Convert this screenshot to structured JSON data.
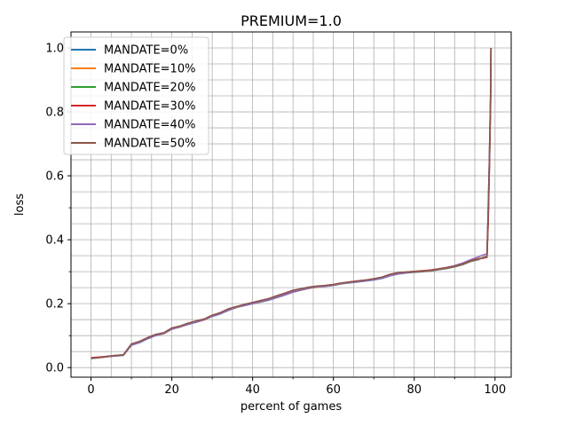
{
  "chart_data": {
    "type": "line",
    "title": "PREMIUM=1.0",
    "xlabel": "percent of games",
    "ylabel": "loss",
    "xlim": [
      -4.95,
      104
    ],
    "ylim": [
      -0.03,
      1.05
    ],
    "xticks": [
      0,
      20,
      40,
      60,
      80,
      100
    ],
    "xtick_labels": [
      "0",
      "20",
      "40",
      "60",
      "80",
      "100"
    ],
    "yticks": [
      0.0,
      0.2,
      0.4,
      0.6,
      0.8,
      1.0
    ],
    "ytick_labels": [
      "0.0",
      "0.2",
      "0.4",
      "0.6",
      "0.8",
      "1.0"
    ],
    "grid": true,
    "minor_grid": true,
    "legend_position": "top-left",
    "series": [
      {
        "name": "MANDATE=0%",
        "color": "#1f77b4",
        "x": [
          0,
          2,
          4,
          6,
          8,
          10,
          12,
          14,
          16,
          18,
          20,
          22,
          24,
          26,
          28,
          30,
          32,
          34,
          36,
          38,
          40,
          42,
          44,
          46,
          48,
          50,
          52,
          54,
          56,
          58,
          60,
          62,
          64,
          66,
          68,
          70,
          72,
          74,
          76,
          78,
          80,
          82,
          84,
          86,
          88,
          90,
          92,
          94,
          96,
          97,
          98,
          98.3,
          98.6,
          98.9,
          99
        ],
        "y": [
          0.028,
          0.031,
          0.034,
          0.036,
          0.038,
          0.07,
          0.078,
          0.09,
          0.1,
          0.106,
          0.12,
          0.127,
          0.135,
          0.142,
          0.149,
          0.16,
          0.168,
          0.179,
          0.188,
          0.194,
          0.2,
          0.205,
          0.211,
          0.219,
          0.227,
          0.236,
          0.242,
          0.248,
          0.252,
          0.254,
          0.257,
          0.262,
          0.265,
          0.268,
          0.271,
          0.274,
          0.279,
          0.287,
          0.293,
          0.296,
          0.298,
          0.3,
          0.302,
          0.306,
          0.31,
          0.315,
          0.322,
          0.332,
          0.338,
          0.345,
          0.348,
          0.48,
          0.65,
          0.85,
          1.0
        ]
      },
      {
        "name": "MANDATE=10%",
        "color": "#ff7f0e",
        "x": [
          0,
          2,
          4,
          6,
          8,
          10,
          12,
          14,
          16,
          18,
          20,
          22,
          24,
          26,
          28,
          30,
          32,
          34,
          36,
          38,
          40,
          42,
          44,
          46,
          48,
          50,
          52,
          54,
          56,
          58,
          60,
          62,
          64,
          66,
          68,
          70,
          72,
          74,
          76,
          78,
          80,
          82,
          84,
          86,
          88,
          90,
          92,
          94,
          96,
          97,
          98,
          98.3,
          98.6,
          98.9,
          99
        ],
        "y": [
          0.029,
          0.031,
          0.034,
          0.037,
          0.039,
          0.071,
          0.079,
          0.091,
          0.101,
          0.106,
          0.121,
          0.127,
          0.136,
          0.143,
          0.149,
          0.161,
          0.169,
          0.18,
          0.188,
          0.195,
          0.201,
          0.206,
          0.212,
          0.22,
          0.228,
          0.237,
          0.243,
          0.248,
          0.252,
          0.255,
          0.258,
          0.262,
          0.266,
          0.269,
          0.272,
          0.275,
          0.28,
          0.288,
          0.294,
          0.297,
          0.299,
          0.301,
          0.303,
          0.307,
          0.311,
          0.316,
          0.323,
          0.333,
          0.339,
          0.344,
          0.347,
          0.47,
          0.64,
          0.84,
          1.0
        ]
      },
      {
        "name": "MANDATE=20%",
        "color": "#2ca02c",
        "x": [
          0,
          2,
          4,
          6,
          8,
          10,
          12,
          14,
          16,
          18,
          20,
          22,
          24,
          26,
          28,
          30,
          32,
          34,
          36,
          38,
          40,
          42,
          44,
          46,
          48,
          50,
          52,
          54,
          56,
          58,
          60,
          62,
          64,
          66,
          68,
          70,
          72,
          74,
          76,
          78,
          80,
          82,
          84,
          86,
          88,
          90,
          92,
          94,
          96,
          97,
          98,
          98.3,
          98.6,
          98.9,
          99
        ],
        "y": [
          0.03,
          0.032,
          0.035,
          0.037,
          0.039,
          0.072,
          0.08,
          0.092,
          0.102,
          0.107,
          0.122,
          0.128,
          0.137,
          0.144,
          0.15,
          0.162,
          0.17,
          0.181,
          0.189,
          0.196,
          0.202,
          0.207,
          0.213,
          0.221,
          0.229,
          0.238,
          0.244,
          0.249,
          0.253,
          0.256,
          0.259,
          0.263,
          0.267,
          0.27,
          0.273,
          0.276,
          0.281,
          0.289,
          0.295,
          0.298,
          0.3,
          0.302,
          0.304,
          0.308,
          0.312,
          0.317,
          0.324,
          0.334,
          0.34,
          0.343,
          0.346,
          0.46,
          0.63,
          0.83,
          1.0
        ]
      },
      {
        "name": "MANDATE=30%",
        "color": "#d62728",
        "x": [
          0,
          2,
          4,
          6,
          8,
          10,
          12,
          14,
          16,
          18,
          20,
          22,
          24,
          26,
          28,
          30,
          32,
          34,
          36,
          38,
          40,
          42,
          44,
          46,
          48,
          50,
          52,
          54,
          56,
          58,
          60,
          62,
          64,
          66,
          68,
          70,
          72,
          74,
          76,
          78,
          80,
          82,
          84,
          86,
          88,
          90,
          92,
          94,
          96,
          97,
          98,
          98.3,
          98.6,
          98.9,
          99
        ],
        "y": [
          0.031,
          0.033,
          0.035,
          0.038,
          0.04,
          0.073,
          0.081,
          0.093,
          0.103,
          0.108,
          0.123,
          0.129,
          0.138,
          0.145,
          0.151,
          0.163,
          0.171,
          0.182,
          0.19,
          0.197,
          0.203,
          0.208,
          0.214,
          0.222,
          0.23,
          0.239,
          0.245,
          0.25,
          0.254,
          0.257,
          0.26,
          0.264,
          0.268,
          0.271,
          0.274,
          0.277,
          0.282,
          0.29,
          0.296,
          0.299,
          0.301,
          0.303,
          0.305,
          0.309,
          0.313,
          0.318,
          0.325,
          0.335,
          0.341,
          0.342,
          0.345,
          0.45,
          0.62,
          0.82,
          1.0
        ]
      },
      {
        "name": "MANDATE=40%",
        "color": "#9467bd",
        "x": [
          0,
          2,
          4,
          6,
          8,
          10,
          12,
          14,
          16,
          18,
          20,
          22,
          24,
          26,
          28,
          30,
          32,
          34,
          36,
          38,
          40,
          42,
          44,
          46,
          48,
          50,
          52,
          54,
          56,
          58,
          60,
          62,
          64,
          66,
          68,
          70,
          72,
          74,
          76,
          78,
          80,
          82,
          84,
          86,
          88,
          90,
          92,
          94,
          96,
          97,
          98,
          98.3,
          98.6,
          98.9,
          99
        ],
        "y": [
          0.029,
          0.032,
          0.034,
          0.037,
          0.039,
          0.071,
          0.079,
          0.091,
          0.101,
          0.107,
          0.121,
          0.128,
          0.136,
          0.143,
          0.15,
          0.161,
          0.169,
          0.18,
          0.189,
          0.195,
          0.201,
          0.207,
          0.212,
          0.221,
          0.228,
          0.237,
          0.244,
          0.249,
          0.253,
          0.255,
          0.258,
          0.263,
          0.266,
          0.269,
          0.272,
          0.275,
          0.28,
          0.288,
          0.294,
          0.297,
          0.3,
          0.302,
          0.304,
          0.308,
          0.313,
          0.319,
          0.327,
          0.338,
          0.347,
          0.352,
          0.356,
          0.5,
          0.66,
          0.86,
          1.0
        ]
      },
      {
        "name": "MANDATE=50%",
        "color": "#8c564b",
        "x": [
          0,
          2,
          4,
          6,
          8,
          10,
          12,
          14,
          16,
          18,
          20,
          22,
          24,
          26,
          28,
          30,
          32,
          34,
          36,
          38,
          40,
          42,
          44,
          46,
          48,
          50,
          52,
          54,
          56,
          58,
          60,
          62,
          64,
          66,
          68,
          70,
          72,
          74,
          76,
          78,
          80,
          82,
          84,
          86,
          88,
          90,
          92,
          94,
          96,
          97,
          98,
          98.3,
          98.6,
          98.9,
          99
        ],
        "y": [
          0.03,
          0.032,
          0.035,
          0.038,
          0.04,
          0.074,
          0.082,
          0.094,
          0.104,
          0.109,
          0.124,
          0.13,
          0.139,
          0.146,
          0.152,
          0.164,
          0.172,
          0.184,
          0.191,
          0.198,
          0.204,
          0.21,
          0.216,
          0.225,
          0.233,
          0.242,
          0.247,
          0.252,
          0.255,
          0.257,
          0.26,
          0.265,
          0.268,
          0.271,
          0.274,
          0.278,
          0.283,
          0.292,
          0.297,
          0.299,
          0.301,
          0.302,
          0.304,
          0.308,
          0.312,
          0.317,
          0.324,
          0.334,
          0.34,
          0.343,
          0.346,
          0.47,
          0.64,
          0.85,
          1.0
        ]
      }
    ]
  }
}
